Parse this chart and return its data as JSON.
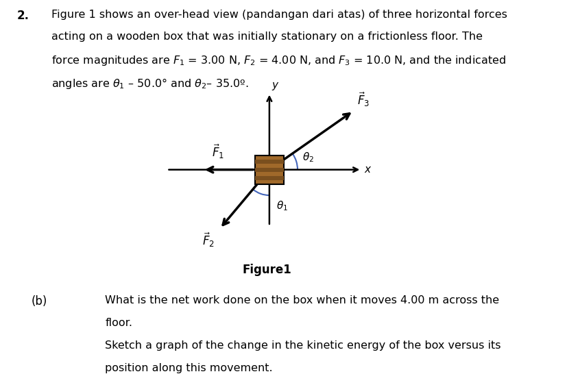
{
  "title_text": "Figure1",
  "line1": "Figure 1 shows an over-head view (pandangan dari atas) of three horizontal forces",
  "line2": "acting on a wooden box that was initially stationary on a frictionless floor. The",
  "line3": "force magnitudes are $F_1$ = 3.00 N, $F_2$ = 4.00 N, and $F_3$ = 10.0 N, and the indicated",
  "line4": "angles are $\\theta_1$ – 50.0° and $\\theta_2$– 35.0º.",
  "part_b_label": "(b)",
  "part_b1_line1": "What is the net work done on the box when it moves 4.00 m across the",
  "part_b1_line2": "floor.",
  "part_b2_line1": "Sketch a graph of the change in the kinetic energy of the box versus its",
  "part_b2_line2": "position along this movement.",
  "theta1_deg": 50.0,
  "theta2_deg": 35.0,
  "box_color": "#A0692A",
  "box_stripe_color": "#7A4F1E",
  "bg_color": "#ffffff",
  "text_color": "#000000",
  "arc_color": "#4466bb"
}
